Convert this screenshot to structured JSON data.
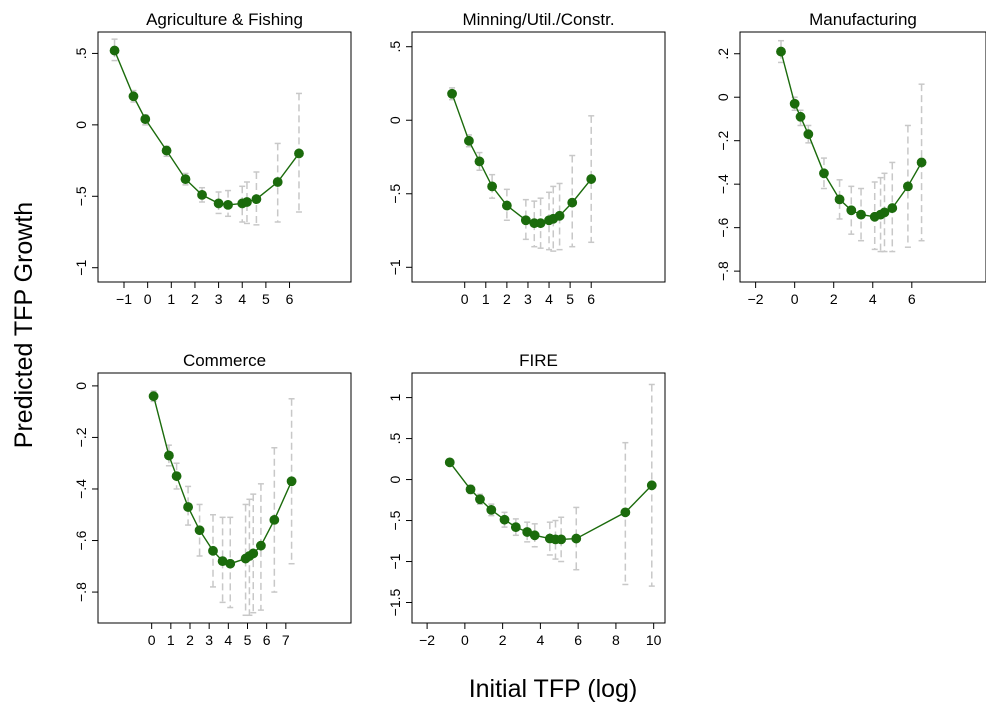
{
  "figure": {
    "ylabel": "Predicted TFP Growth",
    "xlabel": "Initial TFP (log)"
  },
  "colors": {
    "line": "#1b6b0c",
    "marker": "#1b6b0c",
    "ci": "#c8c8c8",
    "frame": "#000000"
  },
  "chart_data": [
    {
      "type": "line",
      "title": "Agriculture & Fishing",
      "xlim": [
        -2.1,
        8.6
      ],
      "ylim": [
        -1.1,
        0.65
      ],
      "xticks": [
        -1,
        0,
        1,
        2,
        3,
        4,
        5,
        6
      ],
      "xtick_labels": [
        "−1",
        "0",
        "1",
        "2",
        "3",
        "4",
        "5",
        "6"
      ],
      "yticks": [
        -1,
        -0.5,
        0,
        0.5
      ],
      "ytick_labels": [
        "−1",
        "−.5",
        "0",
        ".5"
      ],
      "points": [
        {
          "x": -1.4,
          "y": 0.52,
          "lo": 0.45,
          "hi": 0.6
        },
        {
          "x": -0.6,
          "y": 0.2,
          "lo": 0.16,
          "hi": 0.24
        },
        {
          "x": -0.1,
          "y": 0.04,
          "lo": 0.0,
          "hi": 0.07
        },
        {
          "x": 0.8,
          "y": -0.18,
          "lo": -0.22,
          "hi": -0.15
        },
        {
          "x": 1.6,
          "y": -0.38,
          "lo": -0.42,
          "hi": -0.34
        },
        {
          "x": 2.3,
          "y": -0.49,
          "lo": -0.54,
          "hi": -0.44
        },
        {
          "x": 3.0,
          "y": -0.55,
          "lo": -0.62,
          "hi": -0.47
        },
        {
          "x": 3.4,
          "y": -0.56,
          "lo": -0.64,
          "hi": -0.46
        },
        {
          "x": 4.0,
          "y": -0.55,
          "lo": -0.68,
          "hi": -0.43
        },
        {
          "x": 4.2,
          "y": -0.54,
          "lo": -0.69,
          "hi": -0.4
        },
        {
          "x": 4.6,
          "y": -0.52,
          "lo": -0.7,
          "hi": -0.33
        },
        {
          "x": 5.5,
          "y": -0.4,
          "lo": -0.68,
          "hi": -0.13
        },
        {
          "x": 6.4,
          "y": -0.2,
          "lo": -0.61,
          "hi": 0.22
        }
      ]
    },
    {
      "type": "line",
      "title": "Minning/Util./Constr.",
      "xlim": [
        -2.5,
        9.5
      ],
      "ylim": [
        -1.1,
        0.6
      ],
      "xticks": [
        0,
        1,
        2,
        3,
        4,
        5,
        6
      ],
      "xtick_labels": [
        "0",
        "1",
        "2",
        "3",
        "4",
        "5",
        "6"
      ],
      "yticks": [
        -1,
        -0.5,
        0,
        0.5
      ],
      "ytick_labels": [
        "−1",
        "−.5",
        "0",
        ".5"
      ],
      "points": [
        {
          "x": -0.6,
          "y": 0.18,
          "lo": 0.14,
          "hi": 0.22
        },
        {
          "x": 0.2,
          "y": -0.14,
          "lo": -0.18,
          "hi": -0.1
        },
        {
          "x": 0.7,
          "y": -0.28,
          "lo": -0.34,
          "hi": -0.22
        },
        {
          "x": 1.3,
          "y": -0.45,
          "lo": -0.53,
          "hi": -0.37
        },
        {
          "x": 2.0,
          "y": -0.58,
          "lo": -0.68,
          "hi": -0.47
        },
        {
          "x": 2.9,
          "y": -0.68,
          "lo": -0.81,
          "hi": -0.54
        },
        {
          "x": 3.3,
          "y": -0.7,
          "lo": -0.86,
          "hi": -0.55
        },
        {
          "x": 3.6,
          "y": -0.7,
          "lo": -0.87,
          "hi": -0.53
        },
        {
          "x": 4.0,
          "y": -0.68,
          "lo": -0.88,
          "hi": -0.49
        },
        {
          "x": 4.2,
          "y": -0.67,
          "lo": -0.89,
          "hi": -0.45
        },
        {
          "x": 4.5,
          "y": -0.65,
          "lo": -0.88,
          "hi": -0.43
        },
        {
          "x": 5.1,
          "y": -0.56,
          "lo": -0.86,
          "hi": -0.24
        },
        {
          "x": 6.0,
          "y": -0.4,
          "lo": -0.83,
          "hi": 0.03
        }
      ]
    },
    {
      "type": "line",
      "title": "Manufacturing",
      "xlim": [
        -2.8,
        9.8
      ],
      "ylim": [
        -0.85,
        0.3
      ],
      "xticks": [
        -2,
        0,
        2,
        4,
        6
      ],
      "xtick_labels": [
        "−2",
        "0",
        "2",
        "4",
        "6"
      ],
      "yticks": [
        -0.8,
        -0.6,
        -0.4,
        -0.2,
        0,
        0.2
      ],
      "ytick_labels": [
        "−.8",
        "−.6",
        "−.4",
        "−.2",
        "0",
        ".2"
      ],
      "points": [
        {
          "x": -0.7,
          "y": 0.21,
          "lo": 0.16,
          "hi": 0.26
        },
        {
          "x": 0.0,
          "y": -0.03,
          "lo": -0.06,
          "hi": 0.0
        },
        {
          "x": 0.3,
          "y": -0.09,
          "lo": -0.13,
          "hi": -0.06
        },
        {
          "x": 0.7,
          "y": -0.17,
          "lo": -0.21,
          "hi": -0.13
        },
        {
          "x": 1.5,
          "y": -0.35,
          "lo": -0.42,
          "hi": -0.28
        },
        {
          "x": 2.3,
          "y": -0.47,
          "lo": -0.56,
          "hi": -0.38
        },
        {
          "x": 2.9,
          "y": -0.52,
          "lo": -0.63,
          "hi": -0.41
        },
        {
          "x": 3.4,
          "y": -0.54,
          "lo": -0.66,
          "hi": -0.42
        },
        {
          "x": 4.1,
          "y": -0.55,
          "lo": -0.7,
          "hi": -0.39
        },
        {
          "x": 4.4,
          "y": -0.54,
          "lo": -0.71,
          "hi": -0.37
        },
        {
          "x": 4.6,
          "y": -0.53,
          "lo": -0.71,
          "hi": -0.35
        },
        {
          "x": 5.0,
          "y": -0.51,
          "lo": -0.71,
          "hi": -0.3
        },
        {
          "x": 5.8,
          "y": -0.41,
          "lo": -0.69,
          "hi": -0.13
        },
        {
          "x": 6.5,
          "y": -0.3,
          "lo": -0.66,
          "hi": 0.06
        }
      ]
    },
    {
      "type": "line",
      "title": "Commerce",
      "xlim": [
        -2.8,
        10.4
      ],
      "ylim": [
        -0.92,
        0.05
      ],
      "xticks": [
        0,
        1,
        2,
        3,
        4,
        5,
        6,
        7
      ],
      "xtick_labels": [
        "0",
        "1",
        "2",
        "3",
        "4",
        "5",
        "6",
        "7"
      ],
      "yticks": [
        -0.8,
        -0.6,
        -0.4,
        -0.2,
        0
      ],
      "ytick_labels": [
        "−.8",
        "−.6",
        "−.4",
        "−.2",
        "0"
      ],
      "points": [
        {
          "x": 0.1,
          "y": -0.04,
          "lo": -0.06,
          "hi": -0.02
        },
        {
          "x": 0.9,
          "y": -0.27,
          "lo": -0.31,
          "hi": -0.23
        },
        {
          "x": 1.3,
          "y": -0.35,
          "lo": -0.4,
          "hi": -0.3
        },
        {
          "x": 1.9,
          "y": -0.47,
          "lo": -0.54,
          "hi": -0.39
        },
        {
          "x": 2.5,
          "y": -0.56,
          "lo": -0.66,
          "hi": -0.46
        },
        {
          "x": 3.2,
          "y": -0.64,
          "lo": -0.78,
          "hi": -0.5
        },
        {
          "x": 3.7,
          "y": -0.68,
          "lo": -0.84,
          "hi": -0.51
        },
        {
          "x": 4.1,
          "y": -0.69,
          "lo": -0.86,
          "hi": -0.51
        },
        {
          "x": 4.9,
          "y": -0.67,
          "lo": -0.89,
          "hi": -0.46
        },
        {
          "x": 5.1,
          "y": -0.66,
          "lo": -0.89,
          "hi": -0.44
        },
        {
          "x": 5.3,
          "y": -0.65,
          "lo": -0.88,
          "hi": -0.42
        },
        {
          "x": 5.7,
          "y": -0.62,
          "lo": -0.87,
          "hi": -0.38
        },
        {
          "x": 6.4,
          "y": -0.52,
          "lo": -0.8,
          "hi": -0.24
        },
        {
          "x": 7.3,
          "y": -0.37,
          "lo": -0.69,
          "hi": -0.05
        }
      ]
    },
    {
      "type": "line",
      "title": "FIRE",
      "xlim": [
        -2.8,
        10.6
      ],
      "ylim": [
        -1.75,
        1.3
      ],
      "xticks": [
        -2,
        0,
        2,
        4,
        6,
        8,
        10
      ],
      "xtick_labels": [
        "−2",
        "0",
        "2",
        "4",
        "6",
        "8",
        "10"
      ],
      "yticks": [
        -1.5,
        -1,
        -0.5,
        0,
        0.5,
        1
      ],
      "ytick_labels": [
        "−1.5",
        "−1",
        "−.5",
        "0",
        ".5",
        "1"
      ],
      "points": [
        {
          "x": -0.8,
          "y": 0.21,
          "lo": 0.17,
          "hi": 0.25
        },
        {
          "x": 0.3,
          "y": -0.12,
          "lo": -0.17,
          "hi": -0.07
        },
        {
          "x": 0.8,
          "y": -0.24,
          "lo": -0.3,
          "hi": -0.18
        },
        {
          "x": 1.4,
          "y": -0.37,
          "lo": -0.44,
          "hi": -0.3
        },
        {
          "x": 2.1,
          "y": -0.49,
          "lo": -0.58,
          "hi": -0.4
        },
        {
          "x": 2.7,
          "y": -0.58,
          "lo": -0.68,
          "hi": -0.48
        },
        {
          "x": 3.3,
          "y": -0.64,
          "lo": -0.76,
          "hi": -0.52
        },
        {
          "x": 3.7,
          "y": -0.68,
          "lo": -0.82,
          "hi": -0.54
        },
        {
          "x": 4.5,
          "y": -0.72,
          "lo": -0.92,
          "hi": -0.52
        },
        {
          "x": 4.8,
          "y": -0.73,
          "lo": -0.97,
          "hi": -0.5
        },
        {
          "x": 5.1,
          "y": -0.73,
          "lo": -1.0,
          "hi": -0.46
        },
        {
          "x": 5.9,
          "y": -0.72,
          "lo": -1.1,
          "hi": -0.34
        },
        {
          "x": 8.5,
          "y": -0.4,
          "lo": -1.28,
          "hi": 0.45
        },
        {
          "x": 9.9,
          "y": -0.07,
          "lo": -1.3,
          "hi": 1.16
        }
      ]
    }
  ]
}
